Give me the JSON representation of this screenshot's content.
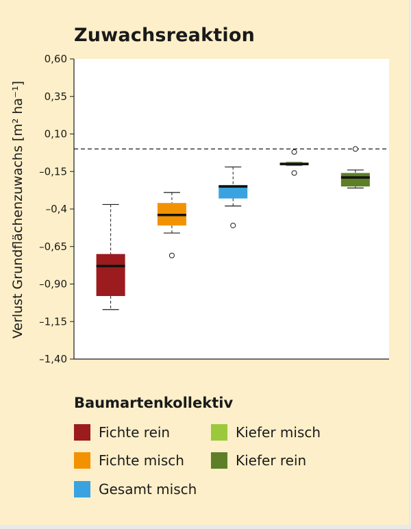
{
  "chart_data": {
    "type": "box",
    "title": "Zuwachsreaktion",
    "ylabel": "Verlust Grundflächenzuwachs [m² ha⁻¹]",
    "ylim": [
      -1.4,
      0.6
    ],
    "yticks": [
      {
        "value": 0.6,
        "label": "0,60"
      },
      {
        "value": 0.35,
        "label": "0,35"
      },
      {
        "value": 0.1,
        "label": "0,10"
      },
      {
        "value": -0.15,
        "label": "–0,15"
      },
      {
        "value": -0.4,
        "label": "–0,4"
      },
      {
        "value": -0.65,
        "label": "–0,65"
      },
      {
        "value": -0.9,
        "label": "–0,90"
      },
      {
        "value": -1.15,
        "label": "–1,15"
      },
      {
        "value": -1.4,
        "label": "–1,40"
      }
    ],
    "reference_line": 0.0,
    "legend_title": "Baumartenkollektiv",
    "series": [
      {
        "name": "Fichte rein",
        "color": "#9b1b1e",
        "whisker_low": -1.07,
        "q1": -0.98,
        "median": -0.78,
        "q3": -0.7,
        "whisker_high": -0.37,
        "outliers": []
      },
      {
        "name": "Fichte misch",
        "color": "#f39200",
        "whisker_low": -0.56,
        "q1": -0.51,
        "median": -0.44,
        "q3": -0.36,
        "whisker_high": -0.29,
        "outliers": [
          -0.71
        ]
      },
      {
        "name": "Gesamt misch",
        "color": "#3aa3df",
        "whisker_low": -0.38,
        "q1": -0.33,
        "median": -0.25,
        "q3": -0.24,
        "whisker_high": -0.12,
        "outliers": [
          -0.51
        ]
      },
      {
        "name": "Kiefer misch",
        "color": "#9bc93c",
        "whisker_low": -0.11,
        "q1": -0.11,
        "median": -0.1,
        "q3": -0.09,
        "whisker_high": -0.09,
        "outliers": [
          -0.16,
          -0.02
        ]
      },
      {
        "name": "Kiefer rein",
        "color": "#5d7f28",
        "whisker_low": -0.26,
        "q1": -0.25,
        "median": -0.19,
        "q3": -0.16,
        "whisker_high": -0.14,
        "outliers": [
          0.0
        ]
      }
    ]
  }
}
